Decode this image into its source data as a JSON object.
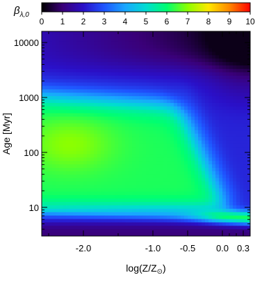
{
  "chart_data": {
    "type": "heatmap",
    "colorbar": {
      "label_symbol": "β",
      "label_subscript": "λ,0",
      "range": [
        0,
        10
      ],
      "ticks": [
        "0",
        "1",
        "2",
        "3",
        "4",
        "5",
        "6",
        "7",
        "8",
        "9",
        "10"
      ],
      "colormap": [
        "#000000",
        "#3a0078",
        "#2a10c8",
        "#1f55ff",
        "#19a6ff",
        "#00dcd2",
        "#00ff70",
        "#8cff00",
        "#ffe800",
        "#ff8800",
        "#ff0000"
      ]
    },
    "x_axis": {
      "label": "log(Z/Z",
      "label_sub": "⊙",
      "label_close": ")",
      "range": [
        -2.6,
        0.4
      ],
      "ticks": [
        {
          "value": -2.0,
          "label": "-2.0"
        },
        {
          "value": -1.0,
          "label": "-1.0"
        },
        {
          "value": -0.5,
          "label": "-0.5"
        },
        {
          "value": 0.0,
          "label": "0.0"
        },
        {
          "value": 0.3,
          "label": "0.3"
        }
      ],
      "minor_ticks": [
        -2.5,
        -1.5,
        0.1,
        0.2
      ]
    },
    "y_axis": {
      "label": "Age [Myr]",
      "scale": "log",
      "range": [
        3,
        16000
      ],
      "ticks": [
        {
          "value": 10,
          "label": "10"
        },
        {
          "value": 100,
          "label": "100"
        },
        {
          "value": 1000,
          "label": "1000"
        },
        {
          "value": 10000,
          "label": "10000"
        }
      ]
    },
    "regions": [
      {
        "description": "high beta plateau",
        "x_range": [
          -2.6,
          -0.55
        ],
        "age_range": [
          15,
          1000
        ],
        "beta": 6.2
      },
      {
        "description": "high beta peak",
        "x": -2.2,
        "age": 150,
        "beta": 7.0
      },
      {
        "description": "metal-rich young branch",
        "x_range": [
          0.0,
          0.4
        ],
        "age_range": [
          5,
          9
        ],
        "beta": 6.0
      },
      {
        "description": "upper left",
        "x": -2.6,
        "age": 10000,
        "beta": 2.4
      },
      {
        "description": "upper right",
        "x": 0.4,
        "age": 16000,
        "beta": 0.4
      },
      {
        "description": "youngest",
        "age": 3,
        "beta": 1.5
      }
    ]
  }
}
